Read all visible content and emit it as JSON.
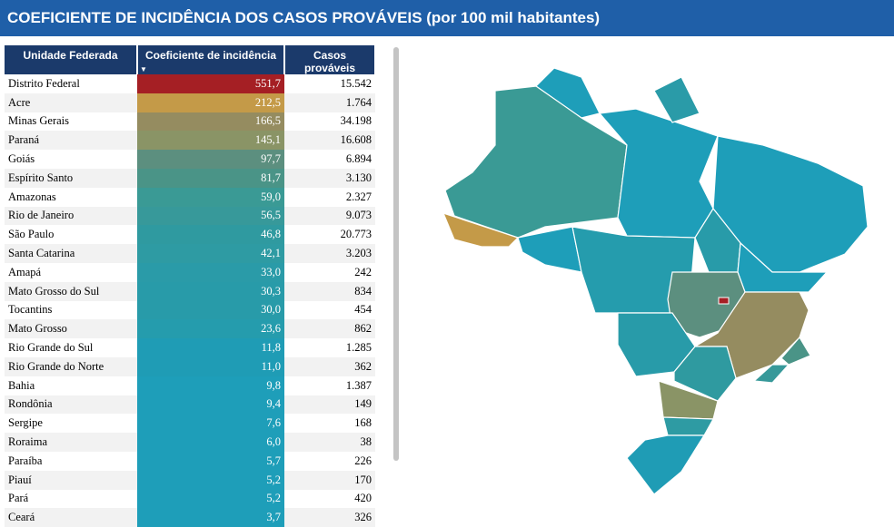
{
  "header": {
    "title": "COEFICIENTE DE INCIDÊNCIA DOS CASOS PROVÁVEIS (por 100 mil habitantes)"
  },
  "table": {
    "columns": [
      "Unidade Federada",
      "Coeficiente de incidência",
      "Casos prováveis"
    ],
    "rows": [
      [
        "Distrito Federal",
        "551,7",
        "15.542",
        "#a51f24"
      ],
      [
        "Acre",
        "212,5",
        "1.764",
        "#c49a48"
      ],
      [
        "Minas Gerais",
        "166,5",
        "34.198",
        "#958c60"
      ],
      [
        "Paraná",
        "145,1",
        "16.608",
        "#8a9466"
      ],
      [
        "Goiás",
        "97,7",
        "6.894",
        "#5c8f7f"
      ],
      [
        "Espírito Santo",
        "81,7",
        "3.130",
        "#4a9487"
      ],
      [
        "Amazonas",
        "59,0",
        "2.327",
        "#3a9a95"
      ],
      [
        "Rio de Janeiro",
        "56,5",
        "9.073",
        "#37999a"
      ],
      [
        "São Paulo",
        "46,8",
        "20.773",
        "#2f9aa0"
      ],
      [
        "Santa Catarina",
        "42,1",
        "3.203",
        "#2e9ba3"
      ],
      [
        "Amapá",
        "33,0",
        "242",
        "#2a9ba8"
      ],
      [
        "Mato Grosso do Sul",
        "30,3",
        "834",
        "#289ba9"
      ],
      [
        "Tocantins",
        "30,0",
        "454",
        "#289ba9"
      ],
      [
        "Mato Grosso",
        "23,6",
        "862",
        "#259cad"
      ],
      [
        "Rio Grande do Sul",
        "11,8",
        "1.285",
        "#1f9cb5"
      ],
      [
        "Rio Grande do Norte",
        "11,0",
        "362",
        "#1f9cb5"
      ],
      [
        "Bahia",
        "9,8",
        "1.387",
        "#1e9eb9"
      ],
      [
        "Rondônia",
        "9,4",
        "149",
        "#1e9eb9"
      ],
      [
        "Sergipe",
        "7,6",
        "168",
        "#1e9eb9"
      ],
      [
        "Roraima",
        "6,0",
        "38",
        "#1e9eb9"
      ],
      [
        "Paraíba",
        "5,7",
        "226",
        "#1e9eb9"
      ],
      [
        "Piauí",
        "5,2",
        "170",
        "#1e9eb9"
      ],
      [
        "Pará",
        "5,2",
        "420",
        "#1e9eb9"
      ],
      [
        "Ceará",
        "3,7",
        "326",
        "#1e9eb9"
      ]
    ]
  }
}
